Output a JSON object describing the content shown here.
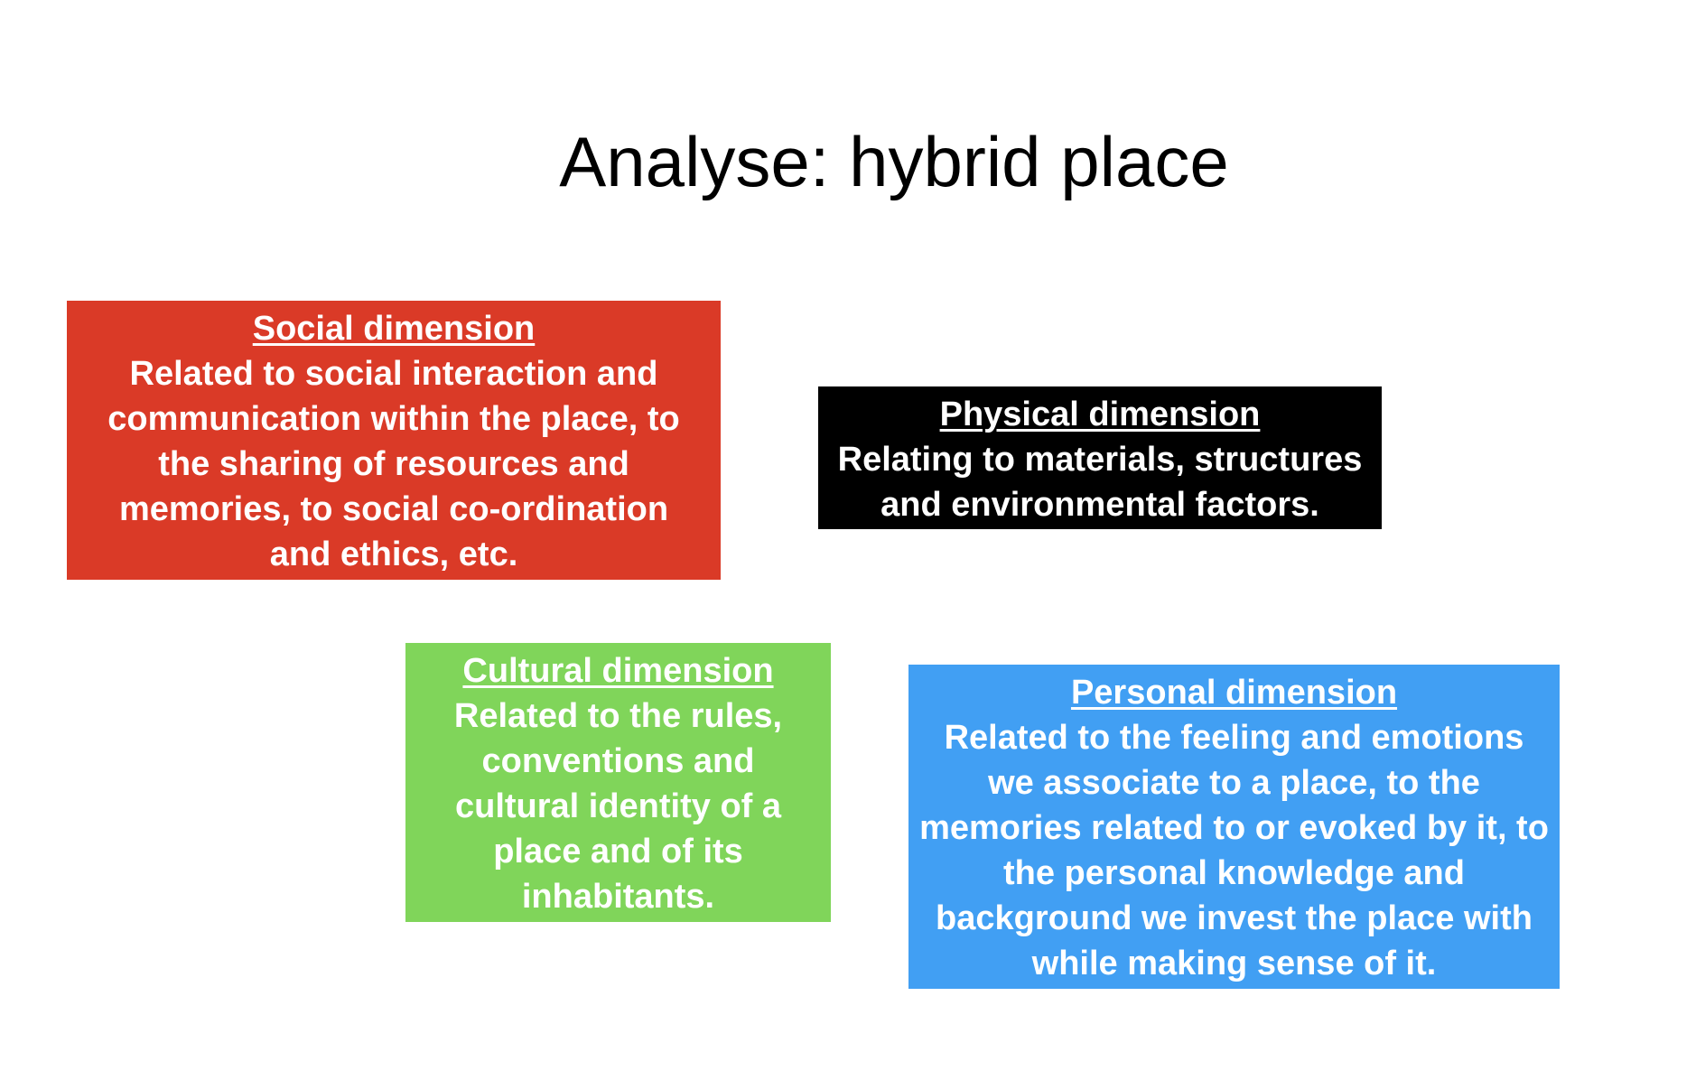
{
  "slide": {
    "title": "Analyse: hybrid place"
  },
  "boxes": {
    "social": {
      "heading": "Social dimension",
      "text": "Related to social interaction and communication within the place, to the sharing of resources and memories, to social co-ordination and ethics, etc.",
      "color": "#da3a27"
    },
    "physical": {
      "heading": "Physical dimension",
      "text": "Relating to materials, structures and environmental factors.",
      "color": "#000000"
    },
    "cultural": {
      "heading": "Cultural dimension",
      "text": "Related to the rules, conventions and cultural identity of a place and of its inhabitants.",
      "color": "#80d55a"
    },
    "personal": {
      "heading": "Personal dimension",
      "text": "Related to the feeling and emotions we associate to a place, to the memories related to or evoked by it, to the personal knowledge and background we invest the place with while making sense of it.",
      "color": "#419ff3"
    }
  }
}
